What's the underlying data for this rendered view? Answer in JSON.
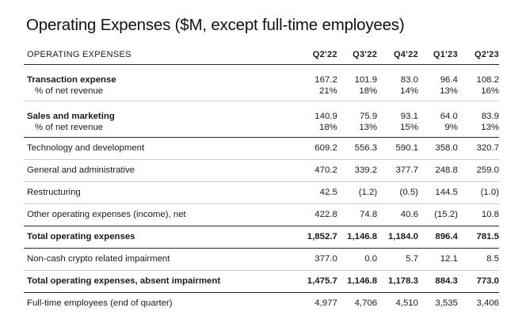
{
  "title": "Operating Expenses ($M, except full-time employees)",
  "header": {
    "label": "OPERATING EXPENSES",
    "quarters": [
      "Q2'22",
      "Q3'22",
      "Q4'22",
      "Q1'23",
      "Q2'23"
    ]
  },
  "rows": [
    {
      "label": "Transaction expense",
      "values": [
        "167.2",
        "101.9",
        "83.0",
        "96.4",
        "108.2"
      ]
    },
    {
      "label": "% of net revenue",
      "values": [
        "21%",
        "18%",
        "14%",
        "13%",
        "16%"
      ]
    },
    {
      "label": "Sales and marketing",
      "values": [
        "140.9",
        "75.9",
        "93.1",
        "64.0",
        "83.9"
      ]
    },
    {
      "label": "% of net revenue",
      "values": [
        "18%",
        "13%",
        "15%",
        "9%",
        "13%"
      ]
    },
    {
      "label": "Technology and development",
      "values": [
        "609.2",
        "556.3",
        "590.1",
        "358.0",
        "320.7"
      ]
    },
    {
      "label": "General and administrative",
      "values": [
        "470.2",
        "339.2",
        "377.7",
        "248.8",
        "259.0"
      ]
    },
    {
      "label": "Restructuring",
      "values": [
        "42.5",
        "(1.2)",
        "(0.5)",
        "144.5",
        "(1.0)"
      ]
    },
    {
      "label": "Other operating expenses (income), net",
      "values": [
        "422.8",
        "74.8",
        "40.6",
        "(15.2)",
        "10.8"
      ]
    },
    {
      "label": "Total operating expenses",
      "values": [
        "1,852.7",
        "1,146.8",
        "1,184.0",
        "896.4",
        "781.5"
      ]
    },
    {
      "label": "Non-cash crypto related impairment",
      "values": [
        "377.0",
        "0.0",
        "5.7",
        "12.1",
        "8.5"
      ]
    },
    {
      "label": "Total operating expenses, absent impairment",
      "values": [
        "1,475.7",
        "1,146.8",
        "1,178.3",
        "884.3",
        "773.0"
      ]
    },
    {
      "label": "Full-time employees (end of quarter)",
      "values": [
        "4,977",
        "4,706",
        "4,510",
        "3,535",
        "3,406"
      ]
    }
  ]
}
